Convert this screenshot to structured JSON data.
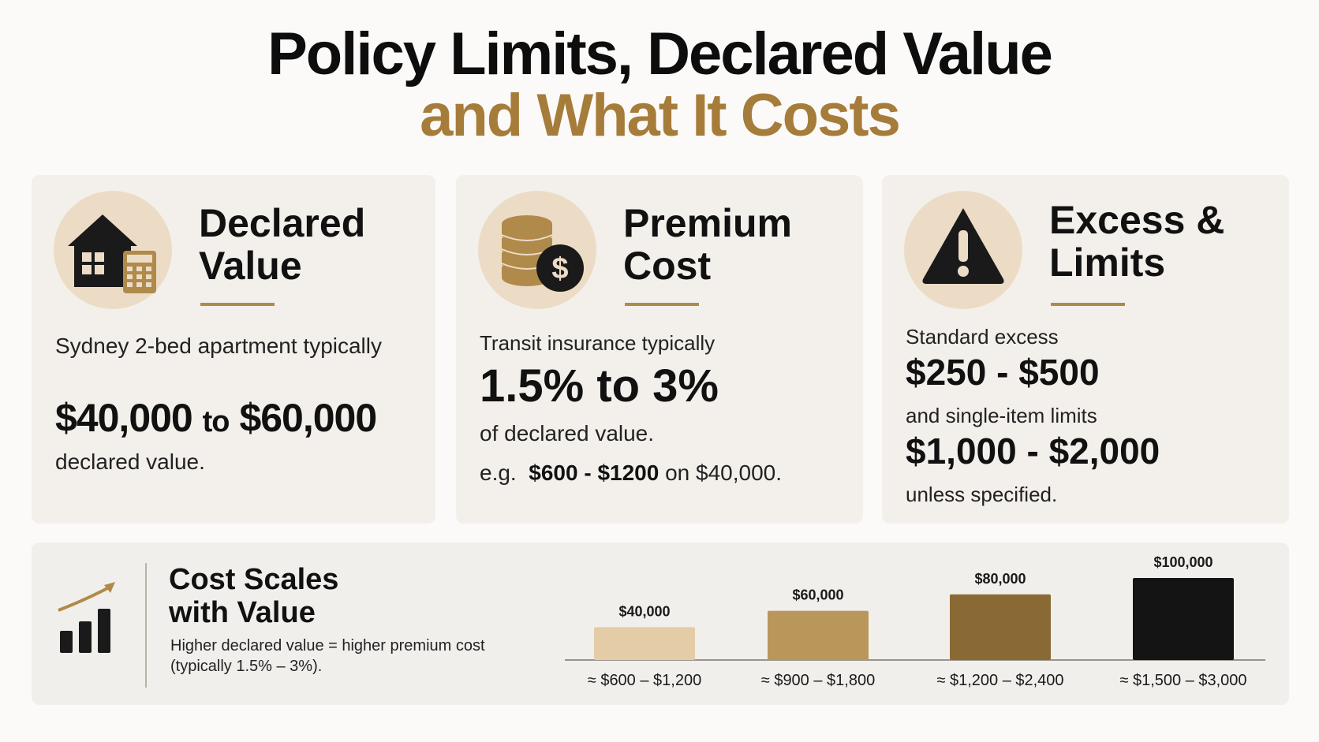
{
  "title": {
    "line1": "Policy Limits, Declared Value",
    "line2": "and What It Costs"
  },
  "cards": [
    {
      "icon": "house-calculator-icon",
      "title_line1": "Declared",
      "title_line2": "Value",
      "text1": "Sydney 2-bed apartment typically",
      "amount_from": "$40,000",
      "amount_to_word": "to",
      "amount_to": "$60,000",
      "text2": "declared value."
    },
    {
      "icon": "coins-dollar-icon",
      "title_line1": "Premium",
      "title_line2": "Cost",
      "text1": "Transit insurance typically",
      "rate": "1.5% to 3%",
      "text2": "of declared value.",
      "example_prefix": "e.g.",
      "example_amount": "$600 - $1200",
      "example_suffix": "on $40,000."
    },
    {
      "icon": "warning-triangle-icon",
      "title_line1": "Excess &",
      "title_line2": "Limits",
      "text1": "Standard excess",
      "excess": "$250 - $500",
      "text2": "and single-item limits",
      "limits": "$1,000 - $2,000",
      "text3": "unless specified."
    }
  ],
  "bottom": {
    "icon": "growth-chart-icon",
    "title_line1": "Cost Scales",
    "title_line2": "with Value",
    "subtitle": "Higher declared value = higher premium cost (typically 1.5% – 3%)."
  },
  "chart_data": {
    "type": "bar",
    "categories": [
      "$40,000",
      "$60,000",
      "$80,000",
      "$100,000"
    ],
    "values": [
      40000,
      60000,
      80000,
      100000
    ],
    "range_labels": [
      "≈ $600 – $1,200",
      "≈ $900 – $1,800",
      "≈ $1,200 – $2,400",
      "≈ $1,500 – $3,000"
    ],
    "colors": [
      "#e3cca6",
      "#b9965a",
      "#8a6a34",
      "#141414"
    ]
  }
}
